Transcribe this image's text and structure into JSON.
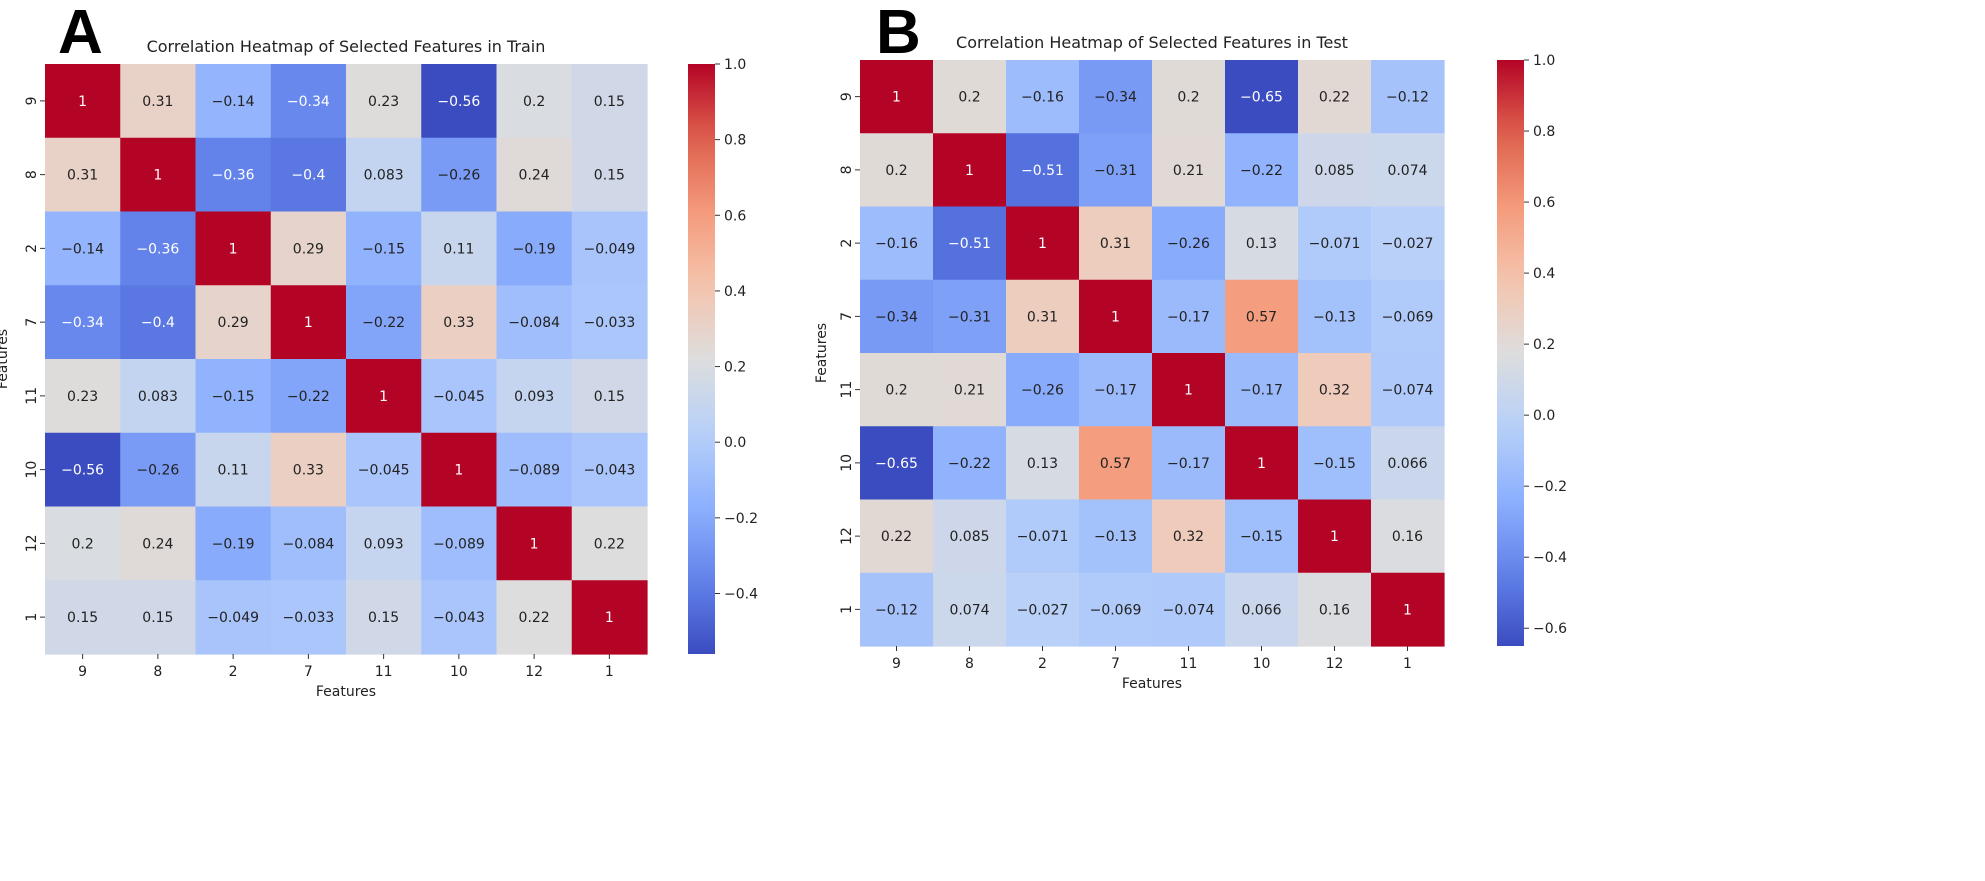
{
  "chart_data": [
    {
      "type": "heatmap",
      "panel_label": "A",
      "title": "Correlation Heatmap of Selected Features in Train",
      "xlabel": "Features",
      "ylabel": "Features",
      "x_categories": [
        "9",
        "8",
        "2",
        "7",
        "11",
        "10",
        "12",
        "1"
      ],
      "y_categories": [
        "9",
        "8",
        "2",
        "7",
        "11",
        "10",
        "12",
        "1"
      ],
      "values": [
        [
          1,
          0.31,
          -0.14,
          -0.34,
          0.23,
          -0.56,
          0.2,
          0.15
        ],
        [
          0.31,
          1,
          -0.36,
          -0.4,
          0.083,
          -0.26,
          0.24,
          0.15
        ],
        [
          -0.14,
          -0.36,
          1,
          0.29,
          -0.15,
          0.11,
          -0.19,
          -0.049
        ],
        [
          -0.34,
          -0.4,
          0.29,
          1,
          -0.22,
          0.33,
          -0.084,
          -0.033
        ],
        [
          0.23,
          0.083,
          -0.15,
          -0.22,
          1,
          -0.045,
          0.093,
          0.15
        ],
        [
          -0.56,
          -0.26,
          0.11,
          0.33,
          -0.045,
          1,
          -0.089,
          -0.043
        ],
        [
          0.2,
          0.24,
          -0.19,
          -0.084,
          0.093,
          -0.089,
          1,
          0.22
        ],
        [
          0.15,
          0.15,
          -0.049,
          -0.033,
          0.15,
          -0.043,
          0.22,
          1
        ]
      ],
      "colormap": "coolwarm",
      "vmin": -0.56,
      "vmax": 1.0,
      "colorbar_ticks": [
        1.0,
        0.8,
        0.6,
        0.4,
        0.2,
        0.0,
        -0.2,
        -0.4
      ],
      "colorbar_tick_labels": [
        "1.0",
        "0.8",
        "0.6",
        "0.4",
        "0.2",
        "0.0",
        "−0.2",
        "−0.4"
      ]
    },
    {
      "type": "heatmap",
      "panel_label": "B",
      "title": "Correlation Heatmap of Selected Features in Test",
      "xlabel": "Features",
      "ylabel": "Features",
      "x_categories": [
        "9",
        "8",
        "2",
        "7",
        "11",
        "10",
        "12",
        "1"
      ],
      "y_categories": [
        "9",
        "8",
        "2",
        "7",
        "11",
        "10",
        "12",
        "1"
      ],
      "values": [
        [
          1,
          0.2,
          -0.16,
          -0.34,
          0.2,
          -0.65,
          0.22,
          -0.12
        ],
        [
          0.2,
          1,
          -0.51,
          -0.31,
          0.21,
          -0.22,
          0.085,
          0.074
        ],
        [
          -0.16,
          -0.51,
          1,
          0.31,
          -0.26,
          0.13,
          -0.071,
          -0.027
        ],
        [
          -0.34,
          -0.31,
          0.31,
          1,
          -0.17,
          0.57,
          -0.13,
          -0.069
        ],
        [
          0.2,
          0.21,
          -0.26,
          -0.17,
          1,
          -0.17,
          0.32,
          -0.074
        ],
        [
          -0.65,
          -0.22,
          0.13,
          0.57,
          -0.17,
          1,
          -0.15,
          0.066
        ],
        [
          0.22,
          0.085,
          -0.071,
          -0.13,
          0.32,
          -0.15,
          1,
          0.16
        ],
        [
          -0.12,
          0.074,
          -0.027,
          -0.069,
          -0.074,
          0.066,
          0.16,
          1
        ]
      ],
      "colormap": "coolwarm",
      "vmin": -0.65,
      "vmax": 1.0,
      "colorbar_ticks": [
        1.0,
        0.8,
        0.6,
        0.4,
        0.2,
        0.0,
        -0.2,
        -0.4,
        -0.6
      ],
      "colorbar_tick_labels": [
        "1.0",
        "0.8",
        "0.6",
        "0.4",
        "0.2",
        "0.0",
        "−0.2",
        "−0.4",
        "−0.6"
      ]
    }
  ]
}
